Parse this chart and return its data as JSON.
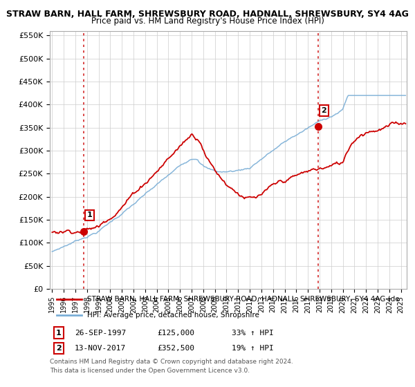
{
  "title": "STRAW BARN, HALL FARM, SHREWSBURY ROAD, HADNALL, SHREWSBURY, SY4 4AG",
  "subtitle": "Price paid vs. HM Land Registry's House Price Index (HPI)",
  "ylim": [
    0,
    560000
  ],
  "yticks": [
    0,
    50000,
    100000,
    150000,
    200000,
    250000,
    300000,
    350000,
    400000,
    450000,
    500000,
    550000
  ],
  "ytick_labels": [
    "£0",
    "£50K",
    "£100K",
    "£150K",
    "£200K",
    "£250K",
    "£300K",
    "£350K",
    "£400K",
    "£450K",
    "£500K",
    "£550K"
  ],
  "xlim_start": 1994.8,
  "xlim_end": 2025.5,
  "sale1_x": 1997.74,
  "sale1_y": 125000,
  "sale1_label": "1",
  "sale1_date": "26-SEP-1997",
  "sale1_price": "£125,000",
  "sale1_hpi": "33% ↑ HPI",
  "sale2_x": 2017.87,
  "sale2_y": 352500,
  "sale2_label": "2",
  "sale2_date": "13-NOV-2017",
  "sale2_price": "£352,500",
  "sale2_hpi": "19% ↑ HPI",
  "red_line_color": "#cc0000",
  "blue_line_color": "#7aaed6",
  "marker_color": "#cc0000",
  "vline_color": "#cc0000",
  "legend_label_red": "STRAW BARN, HALL FARM, SHREWSBURY ROAD, HADNALL, SHREWSBURY, SY4 4AG (de",
  "legend_label_blue": "HPI: Average price, detached house, Shropshire",
  "footer1": "Contains HM Land Registry data © Crown copyright and database right 2024.",
  "footer2": "This data is licensed under the Open Government Licence v3.0.",
  "background_color": "#ffffff",
  "grid_color": "#cccccc"
}
